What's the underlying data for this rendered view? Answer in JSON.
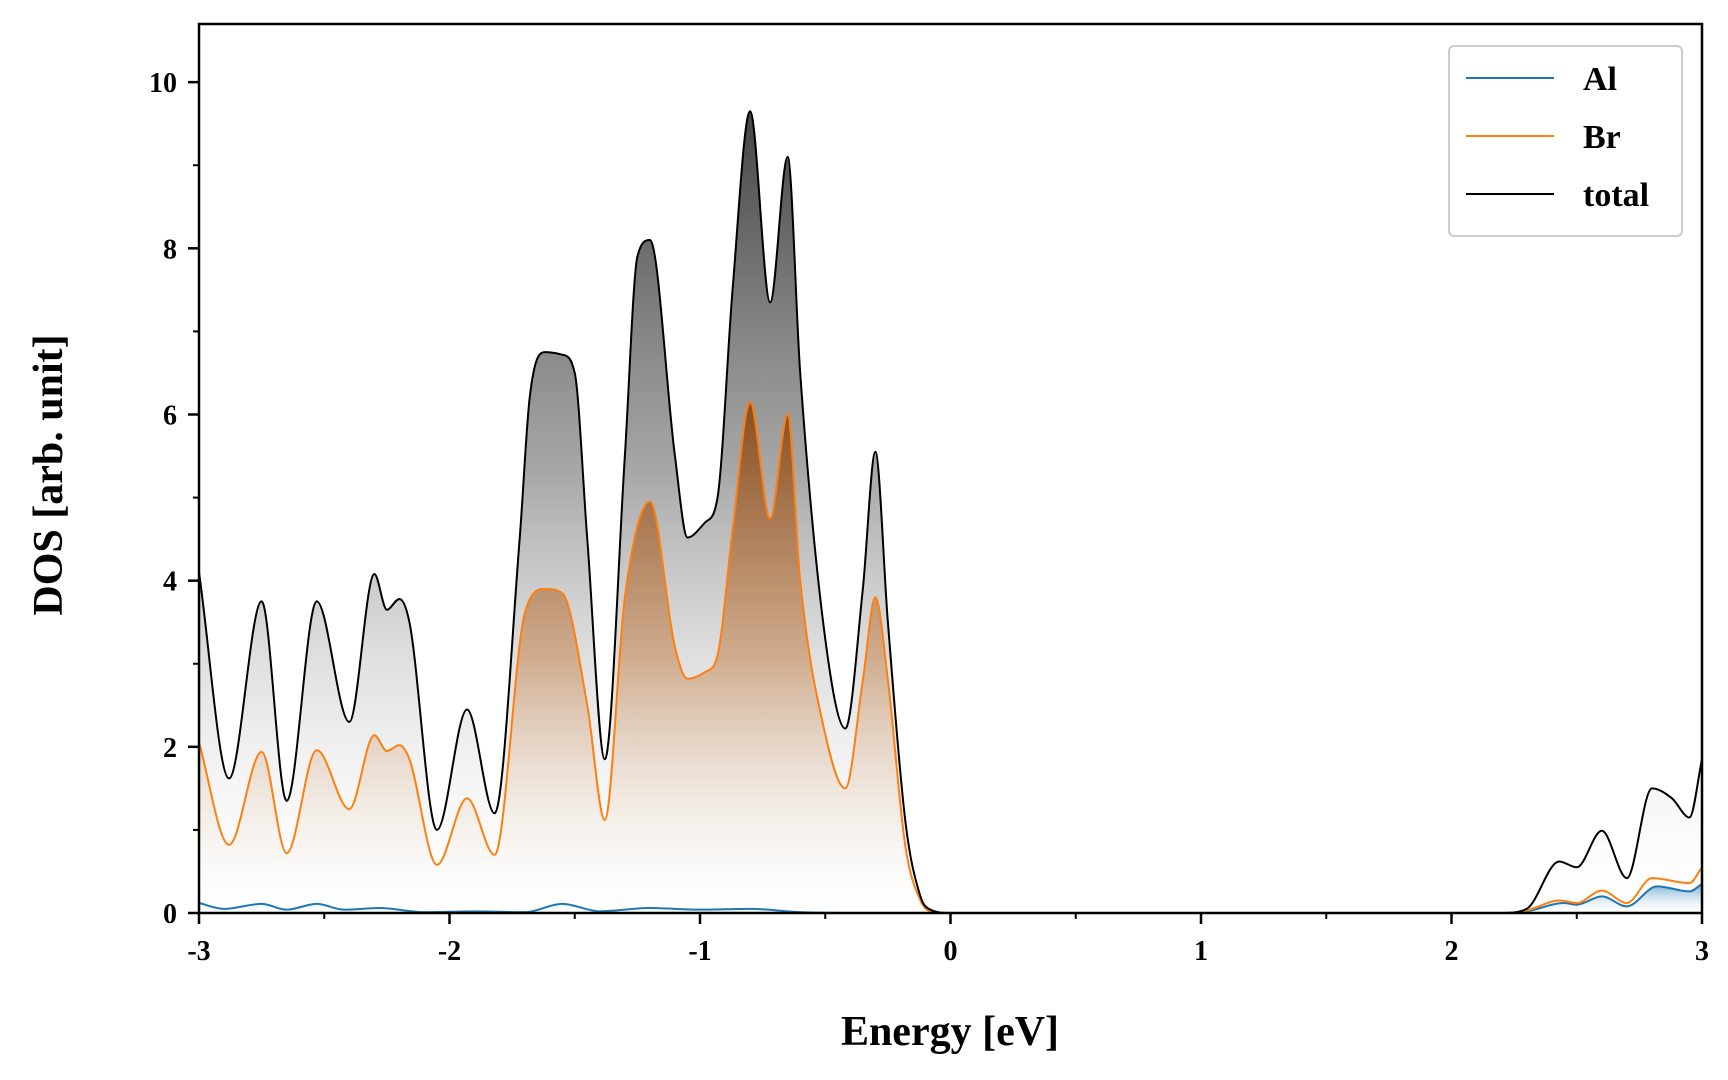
{
  "chart_data": {
    "type": "area",
    "title": "",
    "xlabel": "Energy [eV]",
    "ylabel": "DOS [arb. unit]",
    "xlim": [
      -3,
      3
    ],
    "ylim": [
      0,
      10.7
    ],
    "xticks": [
      -3,
      -2,
      -1,
      0,
      1,
      2,
      3
    ],
    "xtick_labels": [
      "-3",
      "-2",
      "-1",
      "0",
      "1",
      "2",
      "3"
    ],
    "yticks": [
      0,
      2,
      4,
      6,
      8,
      10
    ],
    "ytick_labels": [
      "0",
      "2",
      "4",
      "6",
      "8",
      "10"
    ],
    "grid": false,
    "legend_position": "top-right",
    "series": [
      {
        "name": "Al",
        "color": "#1f77b4",
        "x": [
          -3.0,
          -2.9,
          -2.75,
          -2.65,
          -2.53,
          -2.42,
          -2.28,
          -2.1,
          -1.9,
          -1.7,
          -1.55,
          -1.4,
          -1.2,
          -1.0,
          -0.8,
          -0.6,
          -0.4,
          -0.2,
          0.0,
          2.2,
          2.3,
          2.45,
          2.5,
          2.6,
          2.7,
          2.82,
          2.95,
          3.0
        ],
        "values": [
          0.12,
          0.05,
          0.11,
          0.04,
          0.11,
          0.04,
          0.06,
          0.01,
          0.02,
          0.01,
          0.11,
          0.02,
          0.06,
          0.04,
          0.05,
          0.01,
          0.0,
          0.0,
          0.0,
          0.0,
          0.02,
          0.12,
          0.1,
          0.2,
          0.08,
          0.32,
          0.26,
          0.35
        ]
      },
      {
        "name": "Br",
        "color": "#ff7f0e",
        "x": [
          -3.0,
          -2.88,
          -2.75,
          -2.65,
          -2.53,
          -2.4,
          -2.3,
          -2.25,
          -2.2,
          -2.16,
          -2.05,
          -1.93,
          -1.82,
          -1.7,
          -1.62,
          -1.55,
          -1.45,
          -1.38,
          -1.3,
          -1.2,
          -1.1,
          -1.05,
          -0.98,
          -0.93,
          -0.87,
          -0.8,
          -0.72,
          -0.65,
          -0.6,
          -0.5,
          -0.42,
          -0.35,
          -0.3,
          -0.25,
          -0.18,
          -0.12,
          -0.08,
          0.0,
          2.2,
          2.3,
          2.43,
          2.5,
          2.6,
          2.7,
          2.8,
          2.95,
          3.0
        ],
        "values": [
          2.05,
          0.82,
          1.94,
          0.72,
          1.96,
          1.25,
          2.14,
          1.95,
          2.02,
          1.85,
          0.58,
          1.38,
          0.7,
          3.6,
          3.9,
          3.85,
          2.5,
          1.12,
          3.8,
          4.95,
          3.2,
          2.82,
          2.9,
          3.1,
          4.6,
          6.15,
          4.75,
          6.0,
          4.0,
          2.15,
          1.5,
          2.8,
          3.8,
          2.8,
          0.8,
          0.15,
          0.02,
          0.0,
          0.0,
          0.03,
          0.15,
          0.12,
          0.27,
          0.12,
          0.42,
          0.36,
          0.55
        ]
      },
      {
        "name": "total",
        "color": "#000000",
        "x": [
          -3.0,
          -2.88,
          -2.75,
          -2.65,
          -2.53,
          -2.4,
          -2.3,
          -2.25,
          -2.2,
          -2.16,
          -2.05,
          -1.93,
          -1.82,
          -1.72,
          -1.68,
          -1.62,
          -1.55,
          -1.5,
          -1.45,
          -1.38,
          -1.3,
          -1.25,
          -1.2,
          -1.1,
          -1.05,
          -0.98,
          -0.93,
          -0.87,
          -0.8,
          -0.72,
          -0.65,
          -0.6,
          -0.5,
          -0.42,
          -0.35,
          -0.3,
          -0.25,
          -0.18,
          -0.12,
          -0.08,
          0.0,
          2.2,
          2.3,
          2.43,
          2.5,
          2.6,
          2.7,
          2.8,
          2.88,
          2.95,
          3.0
        ],
        "values": [
          4.1,
          1.62,
          3.75,
          1.35,
          3.75,
          2.3,
          4.08,
          3.65,
          3.78,
          3.5,
          1.0,
          2.45,
          1.2,
          4.5,
          6.2,
          6.75,
          6.72,
          6.5,
          4.5,
          1.85,
          5.5,
          7.9,
          8.1,
          5.5,
          4.52,
          4.7,
          5.0,
          7.5,
          9.65,
          7.35,
          9.1,
          6.5,
          3.3,
          2.22,
          3.9,
          5.55,
          3.5,
          1.1,
          0.2,
          0.04,
          0.0,
          0.0,
          0.05,
          0.62,
          0.55,
          0.99,
          0.42,
          1.5,
          1.38,
          1.15,
          1.85
        ]
      }
    ]
  }
}
